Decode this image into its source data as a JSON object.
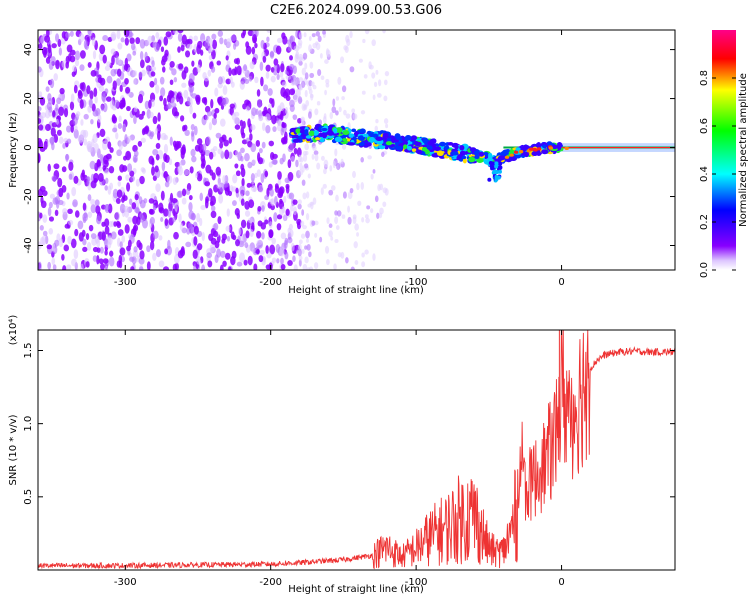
{
  "title": "C2E6.2024.099.00.53.G06",
  "chart_data": [
    {
      "type": "heatmap",
      "xlabel": "Height of straight line (km)",
      "ylabel": "Frequency (Hz)",
      "xlim": [
        -360,
        78
      ],
      "ylim": [
        -50,
        48
      ],
      "x_ticks": [
        -300,
        -200,
        -100,
        0
      ],
      "y_ticks": [
        -40,
        -20,
        0,
        20,
        40
      ],
      "colorbar": {
        "label": "Normalized spectral amplitude",
        "range": [
          0,
          1
        ],
        "ticks": [
          0.0,
          0.2,
          0.4,
          0.6,
          0.8
        ],
        "tick_labels": [
          "0.0",
          "0.2",
          "0.4",
          "0.6",
          "0.8"
        ],
        "colors": [
          "#ffffff",
          "#8800ff",
          "#0000ff",
          "#00ffff",
          "#00ff00",
          "#ffff00",
          "#ff0000",
          "#ff0088"
        ]
      },
      "features": {
        "noise_region_x": [
          -360,
          -180
        ],
        "sparse_region_x": [
          -180,
          -120
        ],
        "signal_track": [
          {
            "x": -185,
            "f": 5
          },
          {
            "x": -160,
            "f": 6
          },
          {
            "x": -140,
            "f": 4
          },
          {
            "x": -120,
            "f": 3
          },
          {
            "x": -100,
            "f": 1
          },
          {
            "x": -80,
            "f": -1
          },
          {
            "x": -60,
            "f": -3
          },
          {
            "x": -45,
            "f": -5
          },
          {
            "x": -30,
            "f": -2
          },
          {
            "x": -10,
            "f": 0
          },
          {
            "x": 0,
            "f": 0
          },
          {
            "x": 78,
            "f": 0
          }
        ]
      }
    },
    {
      "type": "line",
      "xlabel": "Height of straight line (km)",
      "ylabel": "SNR (10 * v/v)",
      "y_multiplier": "(x10⁴)",
      "xlim": [
        -360,
        78
      ],
      "ylim": [
        0,
        16400
      ],
      "x_ticks": [
        -300,
        -200,
        -100,
        0
      ],
      "y_ticks": [
        5000,
        10000,
        15000
      ],
      "y_tick_labels": [
        "0.5",
        "1.0",
        "1.5"
      ],
      "series": [
        {
          "color": "#ee3333",
          "x": [
            -360,
            -300,
            -250,
            -200,
            -180,
            -150,
            -130,
            -120,
            -110,
            -100,
            -90,
            -80,
            -70,
            -60,
            -55,
            -50,
            -45,
            -40,
            -35,
            -30,
            -28,
            -25,
            -20,
            -15,
            -10,
            -5,
            -2,
            0,
            5,
            10,
            15,
            20,
            25,
            30,
            40,
            50,
            60,
            78
          ],
          "y": [
            300,
            300,
            350,
            400,
            500,
            700,
            1000,
            1500,
            900,
            1500,
            2300,
            2800,
            3500,
            3800,
            2600,
            1500,
            1200,
            1300,
            2500,
            4500,
            8000,
            5500,
            6000,
            6800,
            7600,
            8800,
            10800,
            13000,
            10500,
            11300,
            12600,
            13800,
            14400,
            14700,
            14900,
            14950,
            14900,
            14900
          ]
        }
      ]
    }
  ]
}
